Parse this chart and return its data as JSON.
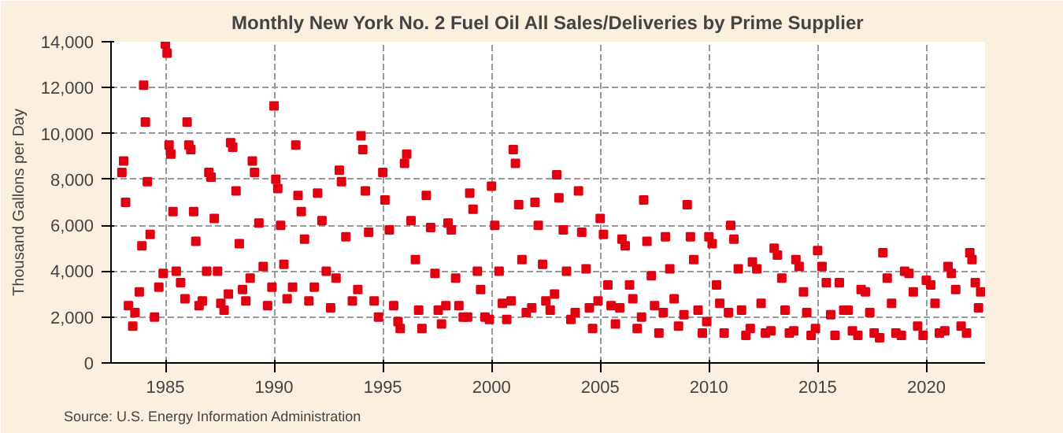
{
  "chart_data": {
    "type": "scatter",
    "title": "Monthly New York No. 2 Fuel Oil All Sales/Deliveries by Prime Supplier",
    "ylabel": "Thousand Gallons per Day",
    "annotations": [
      "Source: U.S. Energy Information Administration"
    ],
    "x": [
      1983.0,
      1983.08,
      1983.17,
      1983.3,
      1983.5,
      1983.6,
      1983.8,
      1983.92,
      1984.0,
      1984.08,
      1984.17,
      1984.3,
      1984.5,
      1984.7,
      1984.9,
      1985.0,
      1985.08,
      1985.17,
      1985.25,
      1985.35,
      1985.5,
      1985.7,
      1985.9,
      1986.0,
      1986.08,
      1986.17,
      1986.3,
      1986.4,
      1986.55,
      1986.7,
      1986.9,
      1987.0,
      1987.1,
      1987.25,
      1987.4,
      1987.55,
      1987.7,
      1987.9,
      1988.0,
      1988.1,
      1988.25,
      1988.4,
      1988.55,
      1988.7,
      1988.9,
      1989.0,
      1989.1,
      1989.3,
      1989.5,
      1989.7,
      1989.9,
      1990.0,
      1990.08,
      1990.17,
      1990.3,
      1990.45,
      1990.6,
      1990.85,
      1991.0,
      1991.1,
      1991.25,
      1991.4,
      1991.6,
      1991.85,
      1992.0,
      1992.2,
      1992.4,
      1992.6,
      1992.85,
      1993.0,
      1993.1,
      1993.3,
      1993.6,
      1993.85,
      1994.0,
      1994.08,
      1994.2,
      1994.35,
      1994.6,
      1994.8,
      1995.0,
      1995.1,
      1995.3,
      1995.5,
      1995.7,
      1995.8,
      1996.0,
      1996.1,
      1996.3,
      1996.5,
      1996.65,
      1996.8,
      1997.0,
      1997.2,
      1997.4,
      1997.55,
      1997.7,
      1997.9,
      1998.0,
      1998.15,
      1998.35,
      1998.5,
      1998.7,
      1998.9,
      1999.0,
      1999.15,
      1999.35,
      1999.5,
      1999.7,
      1999.9,
      2000.0,
      2000.15,
      2000.35,
      2000.5,
      2000.7,
      2000.9,
      2001.0,
      2001.1,
      2001.25,
      2001.4,
      2001.6,
      2001.85,
      2002.0,
      2002.15,
      2002.35,
      2002.5,
      2002.7,
      2002.9,
      2003.0,
      2003.1,
      2003.3,
      2003.45,
      2003.65,
      2003.85,
      2004.0,
      2004.15,
      2004.35,
      2004.5,
      2004.65,
      2004.9,
      2005.0,
      2005.15,
      2005.35,
      2005.5,
      2005.7,
      2005.9,
      2006.0,
      2006.15,
      2006.35,
      2006.5,
      2006.7,
      2006.9,
      2007.0,
      2007.15,
      2007.35,
      2007.5,
      2007.7,
      2007.9,
      2008.0,
      2008.2,
      2008.4,
      2008.6,
      2008.85,
      2009.0,
      2009.15,
      2009.3,
      2009.5,
      2009.7,
      2009.9,
      2010.0,
      2010.15,
      2010.35,
      2010.5,
      2010.7,
      2010.9,
      2011.0,
      2011.15,
      2011.35,
      2011.5,
      2011.7,
      2011.9,
      2012.0,
      2012.2,
      2012.4,
      2012.6,
      2012.85,
      2013.0,
      2013.15,
      2013.35,
      2013.5,
      2013.7,
      2013.9,
      2014.0,
      2014.15,
      2014.35,
      2014.5,
      2014.7,
      2014.9,
      2015.0,
      2015.2,
      2015.4,
      2015.6,
      2015.8,
      2016.0,
      2016.2,
      2016.4,
      2016.6,
      2016.85,
      2017.0,
      2017.2,
      2017.4,
      2017.6,
      2017.85,
      2018.0,
      2018.2,
      2018.4,
      2018.6,
      2018.85,
      2019.0,
      2019.2,
      2019.4,
      2019.6,
      2019.85,
      2020.0,
      2020.2,
      2020.4,
      2020.6,
      2020.85,
      2021.0,
      2021.15,
      2021.35,
      2021.6,
      2021.85,
      2022.0,
      2022.1,
      2022.25,
      2022.4,
      2022.5
    ],
    "values": [
      8300,
      8800,
      7000,
      2500,
      1600,
      2200,
      3100,
      5100,
      12100,
      10500,
      7900,
      5600,
      2000,
      3300,
      3900,
      13900,
      13500,
      9500,
      9100,
      6600,
      4000,
      3500,
      2800,
      10500,
      9500,
      9300,
      6600,
      5300,
      2500,
      2700,
      4000,
      8300,
      8100,
      6300,
      4000,
      2600,
      2300,
      3000,
      9600,
      9400,
      7500,
      5200,
      3200,
      2700,
      3700,
      8800,
      8300,
      6100,
      4200,
      2500,
      3300,
      11200,
      8000,
      7600,
      6000,
      4300,
      2800,
      3300,
      9500,
      7300,
      6600,
      5400,
      2700,
      3300,
      7400,
      6200,
      4000,
      2400,
      3700,
      8400,
      7900,
      5500,
      2700,
      3200,
      9900,
      9300,
      7500,
      5700,
      2700,
      2000,
      8300,
      7100,
      5800,
      2500,
      1800,
      1500,
      8700,
      9100,
      6200,
      4500,
      2300,
      1500,
      7300,
      5900,
      3900,
      2300,
      1700,
      2500,
      6100,
      5800,
      3700,
      2500,
      2000,
      2000,
      7400,
      6700,
      4000,
      3200,
      2000,
      1900,
      7700,
      6000,
      4000,
      2600,
      1900,
      2700,
      9300,
      8700,
      6900,
      4500,
      2200,
      2400,
      7000,
      6000,
      4300,
      2700,
      2300,
      3000,
      8200,
      7200,
      5800,
      4000,
      1900,
      2200,
      7500,
      5700,
      4100,
      2400,
      1500,
      2700,
      6300,
      5600,
      3400,
      2500,
      1700,
      2400,
      5400,
      5100,
      3400,
      2800,
      1500,
      2000,
      7100,
      5300,
      3800,
      2500,
      1300,
      2200,
      5500,
      4100,
      2800,
      1600,
      2100,
      6900,
      5500,
      4500,
      2300,
      1300,
      1800,
      5500,
      5200,
      3400,
      2600,
      1300,
      2200,
      6000,
      5400,
      4100,
      2300,
      1200,
      1500,
      4400,
      4100,
      2600,
      1300,
      1400,
      5000,
      4700,
      3700,
      2300,
      1300,
      1400,
      4500,
      4200,
      3100,
      2200,
      1200,
      1500,
      4900,
      4200,
      3500,
      2100,
      1200,
      3500,
      2300,
      2300,
      1400,
      1200,
      3200,
      3100,
      2200,
      1300,
      1100,
      4800,
      3700,
      2600,
      1300,
      1200,
      4000,
      3900,
      3100,
      1600,
      1200,
      3600,
      3400,
      2600,
      1300,
      1400,
      4200,
      3900,
      3200,
      1600,
      1300,
      4800,
      4500,
      3500,
      2400,
      3100
    ],
    "color": "#e00010",
    "marker": "square",
    "grid": true,
    "xlim": [
      1982.5,
      2022.7
    ],
    "xticks": [
      1985,
      1990,
      1995,
      2000,
      2005,
      2010,
      2015,
      2020
    ],
    "ylim": [
      0,
      14000
    ],
    "yticks": [
      {
        "value": 0,
        "label": "0"
      },
      {
        "value": 2000,
        "label": "2,000"
      },
      {
        "value": 4000,
        "label": "4,000"
      },
      {
        "value": 6000,
        "label": "6,000"
      },
      {
        "value": 8000,
        "label": "8,000"
      },
      {
        "value": 10000,
        "label": "10,000"
      },
      {
        "value": 12000,
        "label": "12,000"
      },
      {
        "value": 14000,
        "label": "14,000"
      }
    ]
  }
}
